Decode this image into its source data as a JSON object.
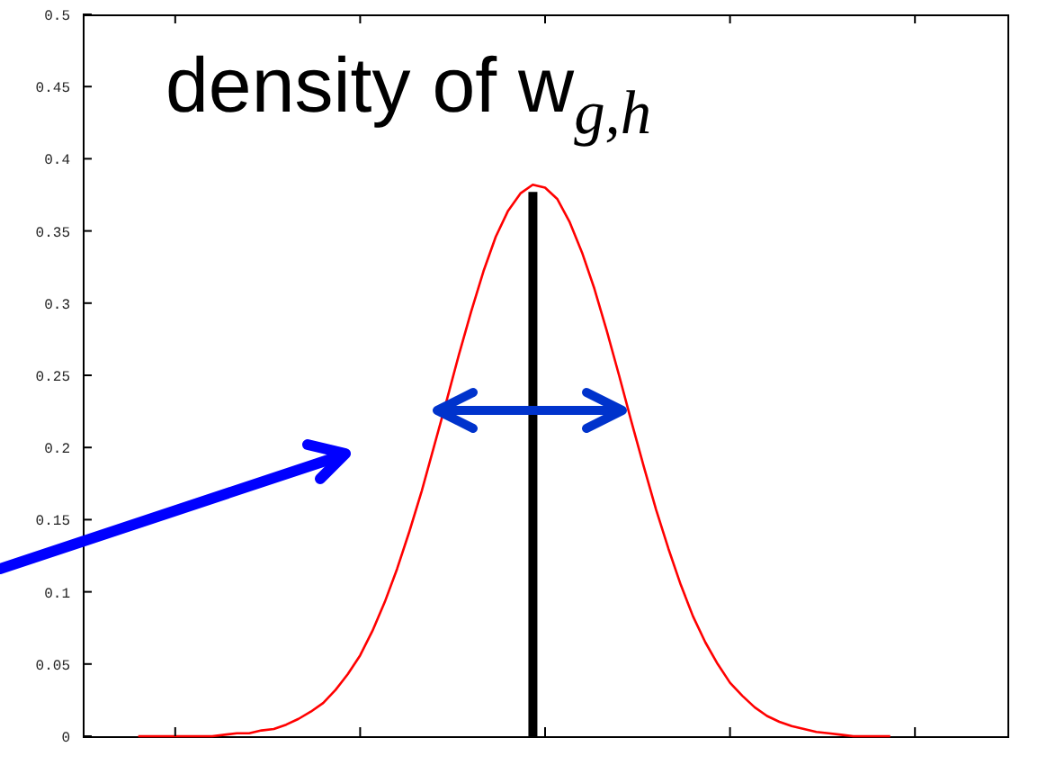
{
  "chart_data": {
    "type": "line",
    "title": "density of w$_{g,h}$",
    "categories": [
      null,
      null,
      null,
      null,
      null,
      null,
      null,
      null,
      null,
      null,
      null,
      null,
      null,
      null,
      null,
      null,
      null,
      null,
      null,
      null,
      null,
      null,
      null,
      null,
      null,
      null,
      null,
      null,
      null,
      null,
      null,
      null,
      null,
      null,
      null,
      null,
      null,
      null,
      null,
      null,
      null,
      null,
      null,
      null,
      null,
      null,
      null,
      null,
      null,
      null,
      null,
      null,
      null,
      null,
      null,
      null,
      null,
      null,
      null,
      null,
      null,
      null,
      null,
      null,
      null,
      null,
      null,
      null,
      null,
      null,
      null,
      null,
      null,
      null,
      null
    ],
    "series": [
      {
        "color": "#ff0000",
        "values": [
          null,
          null,
          null,
          null,
          0,
          0,
          0,
          0,
          0,
          0,
          0,
          0.001,
          0.002,
          0.002,
          0.004,
          0.005,
          0.008,
          0.012,
          0.017,
          0.023,
          0.032,
          0.043,
          0.056,
          0.073,
          0.093,
          0.116,
          0.142,
          0.17,
          0.201,
          0.232,
          0.264,
          0.294,
          0.322,
          0.346,
          0.364,
          0.376,
          0.382,
          0.38,
          0.372,
          0.356,
          0.335,
          0.31,
          0.281,
          0.25,
          0.218,
          0.187,
          0.157,
          0.13,
          0.105,
          0.083,
          0.065,
          0.05,
          0.037,
          0.028,
          0.02,
          0.014,
          0.01,
          0.007,
          0.005,
          0.003,
          0.002,
          0.001,
          0,
          0,
          0,
          0,
          null,
          null,
          null,
          null,
          null,
          null,
          null,
          null,
          null
        ]
      },
      {
        "type": "bar",
        "color": "#000000",
        "values": [
          null,
          null,
          null,
          null,
          null,
          null,
          null,
          null,
          null,
          null,
          null,
          null,
          null,
          null,
          null,
          null,
          null,
          null,
          null,
          null,
          null,
          null,
          null,
          null,
          null,
          null,
          null,
          null,
          null,
          null,
          null,
          null,
          null,
          null,
          null,
          null,
          0.377,
          null,
          null,
          null,
          null,
          null,
          null,
          null,
          null,
          null,
          null,
          null,
          null,
          null,
          null,
          null,
          null,
          null,
          null,
          null,
          null,
          null,
          null,
          null,
          null,
          null,
          null,
          null,
          null,
          null,
          null,
          null,
          null,
          null,
          null,
          null,
          null,
          null,
          null
        ]
      }
    ],
    "ylim": [
      0,
      0.5
    ],
    "yticks": [
      0,
      0.05,
      0.1,
      0.15,
      0.2,
      0.25,
      0.3,
      0.35,
      0.4,
      0.45,
      0.5
    ],
    "tick_labels": "y"
  }
}
